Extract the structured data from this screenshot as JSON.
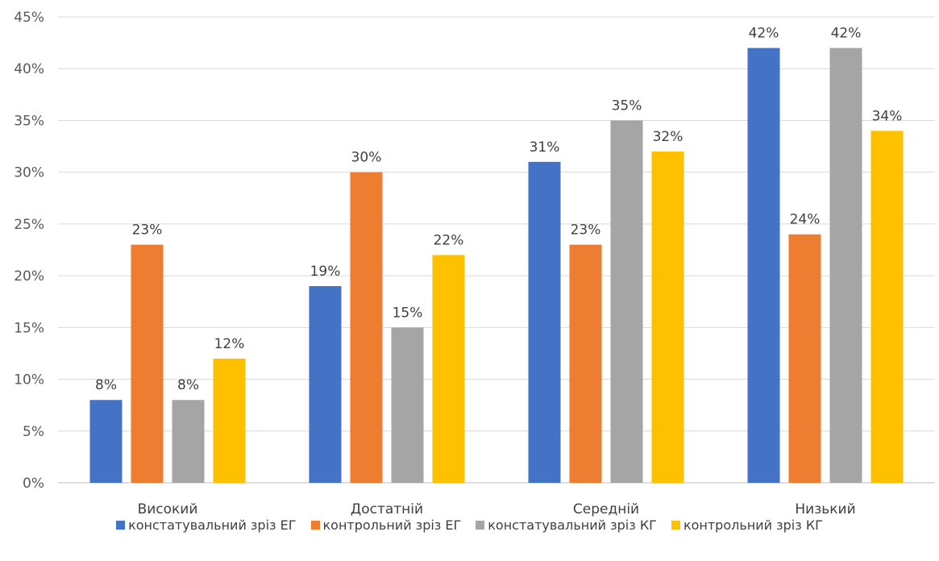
{
  "chart_data": {
    "type": "bar",
    "categories": [
      "Високий",
      "Достатній",
      "Середній",
      "Низький"
    ],
    "series": [
      {
        "name": "констатувальний зріз ЕГ",
        "color": "#4472C4",
        "values": [
          8,
          19,
          31,
          42
        ],
        "labels": [
          "8%",
          "19%",
          "31%",
          "42%"
        ]
      },
      {
        "name": "контрольний зріз ЕГ",
        "color": "#ED7D31",
        "values": [
          23,
          30,
          23,
          24
        ],
        "labels": [
          "23%",
          "30%",
          "23%",
          "24%"
        ]
      },
      {
        "name": "констатувальний зріз КГ",
        "color": "#A5A5A5",
        "values": [
          8,
          15,
          35,
          42
        ],
        "labels": [
          "8%",
          "15%",
          "35%",
          "42%"
        ]
      },
      {
        "name": "контрольний зріз КГ",
        "color": "#FFC000",
        "values": [
          12,
          22,
          32,
          34
        ],
        "labels": [
          "12%",
          "22%",
          "32%",
          "34%"
        ]
      }
    ],
    "ylim": [
      0,
      45
    ],
    "yticks": [
      "0%",
      "5%",
      "10%",
      "15%",
      "20%",
      "25%",
      "30%",
      "35%",
      "40%",
      "45%"
    ],
    "grid": true,
    "legend_position": "bottom"
  }
}
